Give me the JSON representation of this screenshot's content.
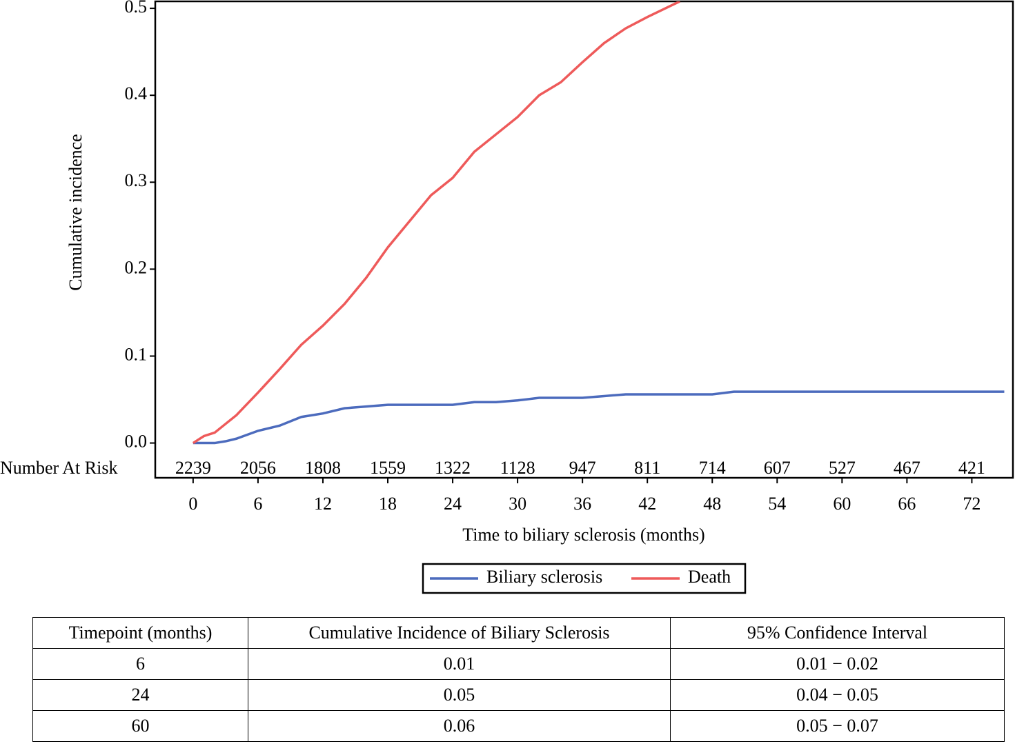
{
  "chart_data": {
    "type": "line",
    "xlabel": "Time to biliary sclerosis (months)",
    "ylabel": "Cumulative incidence",
    "x": [
      0,
      1,
      2,
      3,
      4,
      6,
      8,
      10,
      12,
      14,
      16,
      18,
      20,
      22,
      24,
      26,
      28,
      30,
      32,
      34,
      36,
      38,
      40,
      42,
      44,
      45,
      48,
      50,
      54,
      60,
      66,
      72,
      75
    ],
    "series": [
      {
        "name": "Biliary sclerosis",
        "color": "#4c6bbd",
        "values": [
          0,
          0,
          0,
          0.002,
          0.005,
          0.014,
          0.02,
          0.03,
          0.034,
          0.04,
          0.042,
          0.044,
          0.044,
          0.044,
          0.044,
          0.047,
          0.047,
          0.049,
          0.052,
          0.052,
          0.052,
          0.054,
          0.056,
          0.056,
          0.056,
          0.056,
          0.056,
          0.059,
          0.059,
          0.059,
          0.059,
          0.059,
          0.059
        ]
      },
      {
        "name": "Death",
        "color": "#ee5a5a",
        "values": [
          0,
          0.008,
          0.012,
          0.022,
          0.032,
          0.058,
          0.085,
          0.113,
          0.135,
          0.16,
          0.19,
          0.225,
          0.255,
          0.285,
          0.305,
          0.335,
          0.355,
          0.375,
          0.4,
          0.415,
          0.438,
          0.46,
          0.477,
          0.49,
          0.502,
          0.508,
          null,
          null,
          null,
          null,
          null,
          null,
          null
        ]
      }
    ],
    "xlim": [
      -3.5,
      75.8
    ],
    "ylim": [
      -0.04,
      0.508
    ],
    "xticks": [
      0,
      6,
      12,
      18,
      24,
      30,
      36,
      42,
      48,
      54,
      60,
      66,
      72
    ],
    "yticks": [
      {
        "value": 0,
        "label": "0.0"
      },
      0.1,
      0.2,
      0.3,
      0.4,
      0.5
    ],
    "at_risk": {
      "label": "Number At Risk",
      "values": [
        2239,
        2056,
        1808,
        1559,
        1322,
        1128,
        947,
        811,
        714,
        607,
        527,
        467,
        421
      ]
    },
    "legend": "bottom"
  },
  "table": {
    "header": [
      "Timepoint (months)",
      "Cumulative Incidence of  Biliary  Sclerosis",
      "95%  Confidence Interval"
    ],
    "rows": [
      [
        "6",
        "0.01",
        "0.01 − 0.02"
      ],
      [
        "24",
        "0.05",
        "0.04 − 0.05"
      ],
      [
        "60",
        "0.06",
        "0.05 − 0.07"
      ]
    ]
  }
}
